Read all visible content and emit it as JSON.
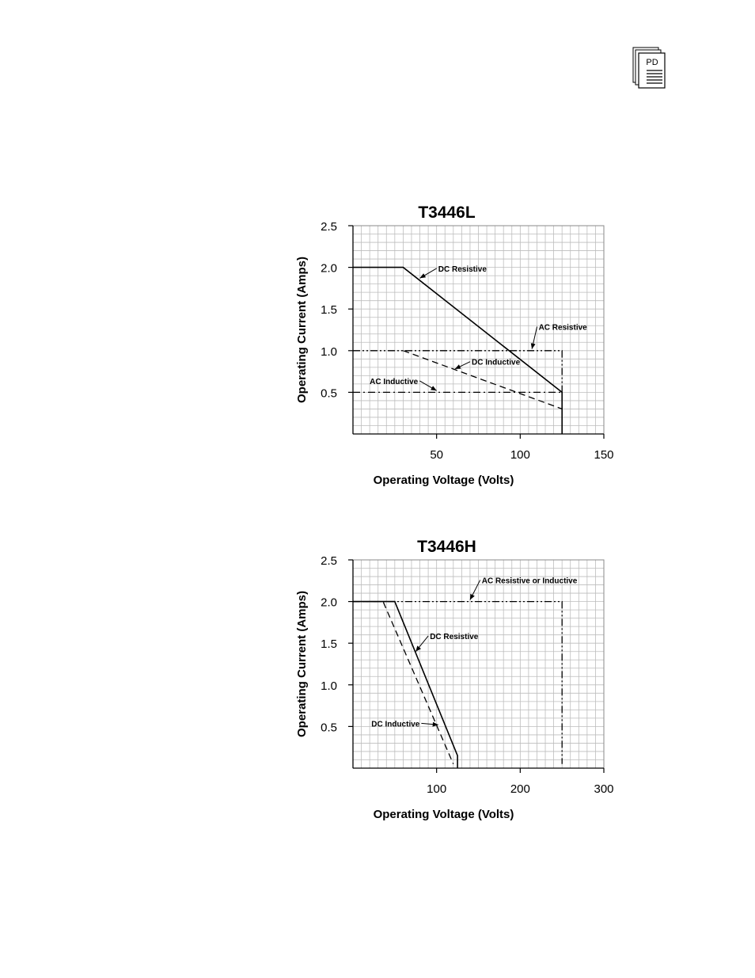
{
  "header": {
    "icon": "pd-document-icon",
    "icon_label": "PD"
  },
  "chart_data": [
    {
      "type": "line",
      "title": "T3446L",
      "xlabel": "Operating Voltage (Volts)",
      "ylabel": "Operating Current (Amps)",
      "xlim": [
        0,
        150
      ],
      "ylim": [
        0,
        2.5
      ],
      "xticks": [
        "50",
        "100",
        "150"
      ],
      "xtick_values": [
        50,
        100,
        150
      ],
      "yticks": [
        "0.5",
        "1.0",
        "1.5",
        "2.0",
        "2.5"
      ],
      "ytick_values": [
        0.5,
        1.0,
        1.5,
        2.0,
        2.5
      ],
      "grid": true,
      "series": [
        {
          "name": "DC Resistive",
          "style": "solid",
          "points": [
            [
              0,
              2.0
            ],
            [
              30,
              2.0
            ],
            [
              125,
              0.5
            ],
            [
              125,
              0
            ]
          ]
        },
        {
          "name": "AC Resistive",
          "style": "dashdotdot",
          "points": [
            [
              0,
              1.0
            ],
            [
              125,
              1.0
            ],
            [
              125,
              0
            ]
          ]
        },
        {
          "name": "DC Inductive",
          "style": "dashed",
          "points": [
            [
              30,
              1.0
            ],
            [
              125,
              0.3
            ],
            [
              125,
              0
            ]
          ]
        },
        {
          "name": "AC Inductive",
          "style": "dashdot",
          "points": [
            [
              0,
              0.5
            ],
            [
              125,
              0.5
            ]
          ]
        }
      ],
      "annotations": [
        {
          "text": "DC Resistive",
          "x": 51,
          "y": 1.95,
          "arrow_to": [
            40,
            1.87
          ]
        },
        {
          "text": "AC Resistive",
          "x": 111,
          "y": 1.25,
          "arrow_to": [
            107,
            1.02
          ]
        },
        {
          "text": "DC Inductive",
          "x": 71,
          "y": 0.83,
          "arrow_to": [
            61,
            0.78
          ]
        },
        {
          "text": "AC Inductive",
          "x": 10,
          "y": 0.6,
          "arrow_to": [
            50,
            0.52
          ]
        }
      ]
    },
    {
      "type": "line",
      "title": "T3446H",
      "xlabel": "Operating Voltage (Volts)",
      "ylabel": "Operating Current (Amps)",
      "xlim": [
        0,
        300
      ],
      "ylim": [
        0,
        2.5
      ],
      "xticks": [
        "100",
        "200",
        "300"
      ],
      "xtick_values": [
        100,
        200,
        300
      ],
      "yticks": [
        "0.5",
        "1.0",
        "1.5",
        "2.0",
        "2.5"
      ],
      "ytick_values": [
        0.5,
        1.0,
        1.5,
        2.0,
        2.5
      ],
      "grid": true,
      "series": [
        {
          "name": "AC Resistive or Inductive",
          "style": "dashdotdot",
          "points": [
            [
              0,
              2.0
            ],
            [
              250,
              2.0
            ],
            [
              250,
              0.05
            ]
          ]
        },
        {
          "name": "DC Resistive",
          "style": "solid",
          "points": [
            [
              0,
              2.0
            ],
            [
              50,
              2.0
            ],
            [
              125,
              0.15
            ],
            [
              125,
              0
            ]
          ]
        },
        {
          "name": "DC Inductive",
          "style": "dashed",
          "points": [
            [
              0,
              2.0
            ],
            [
              36,
              2.0
            ],
            [
              120,
              0.05
            ]
          ]
        }
      ],
      "annotations": [
        {
          "text": "AC Resistive or Inductive",
          "x": 154,
          "y": 2.22,
          "arrow_to": [
            140,
            2.02
          ]
        },
        {
          "text": "DC Resistive",
          "x": 92,
          "y": 1.55,
          "arrow_to": [
            75,
            1.4
          ]
        },
        {
          "text": "DC Inductive",
          "x": 22,
          "y": 0.5,
          "arrow_to": [
            102,
            0.52
          ]
        }
      ]
    }
  ]
}
